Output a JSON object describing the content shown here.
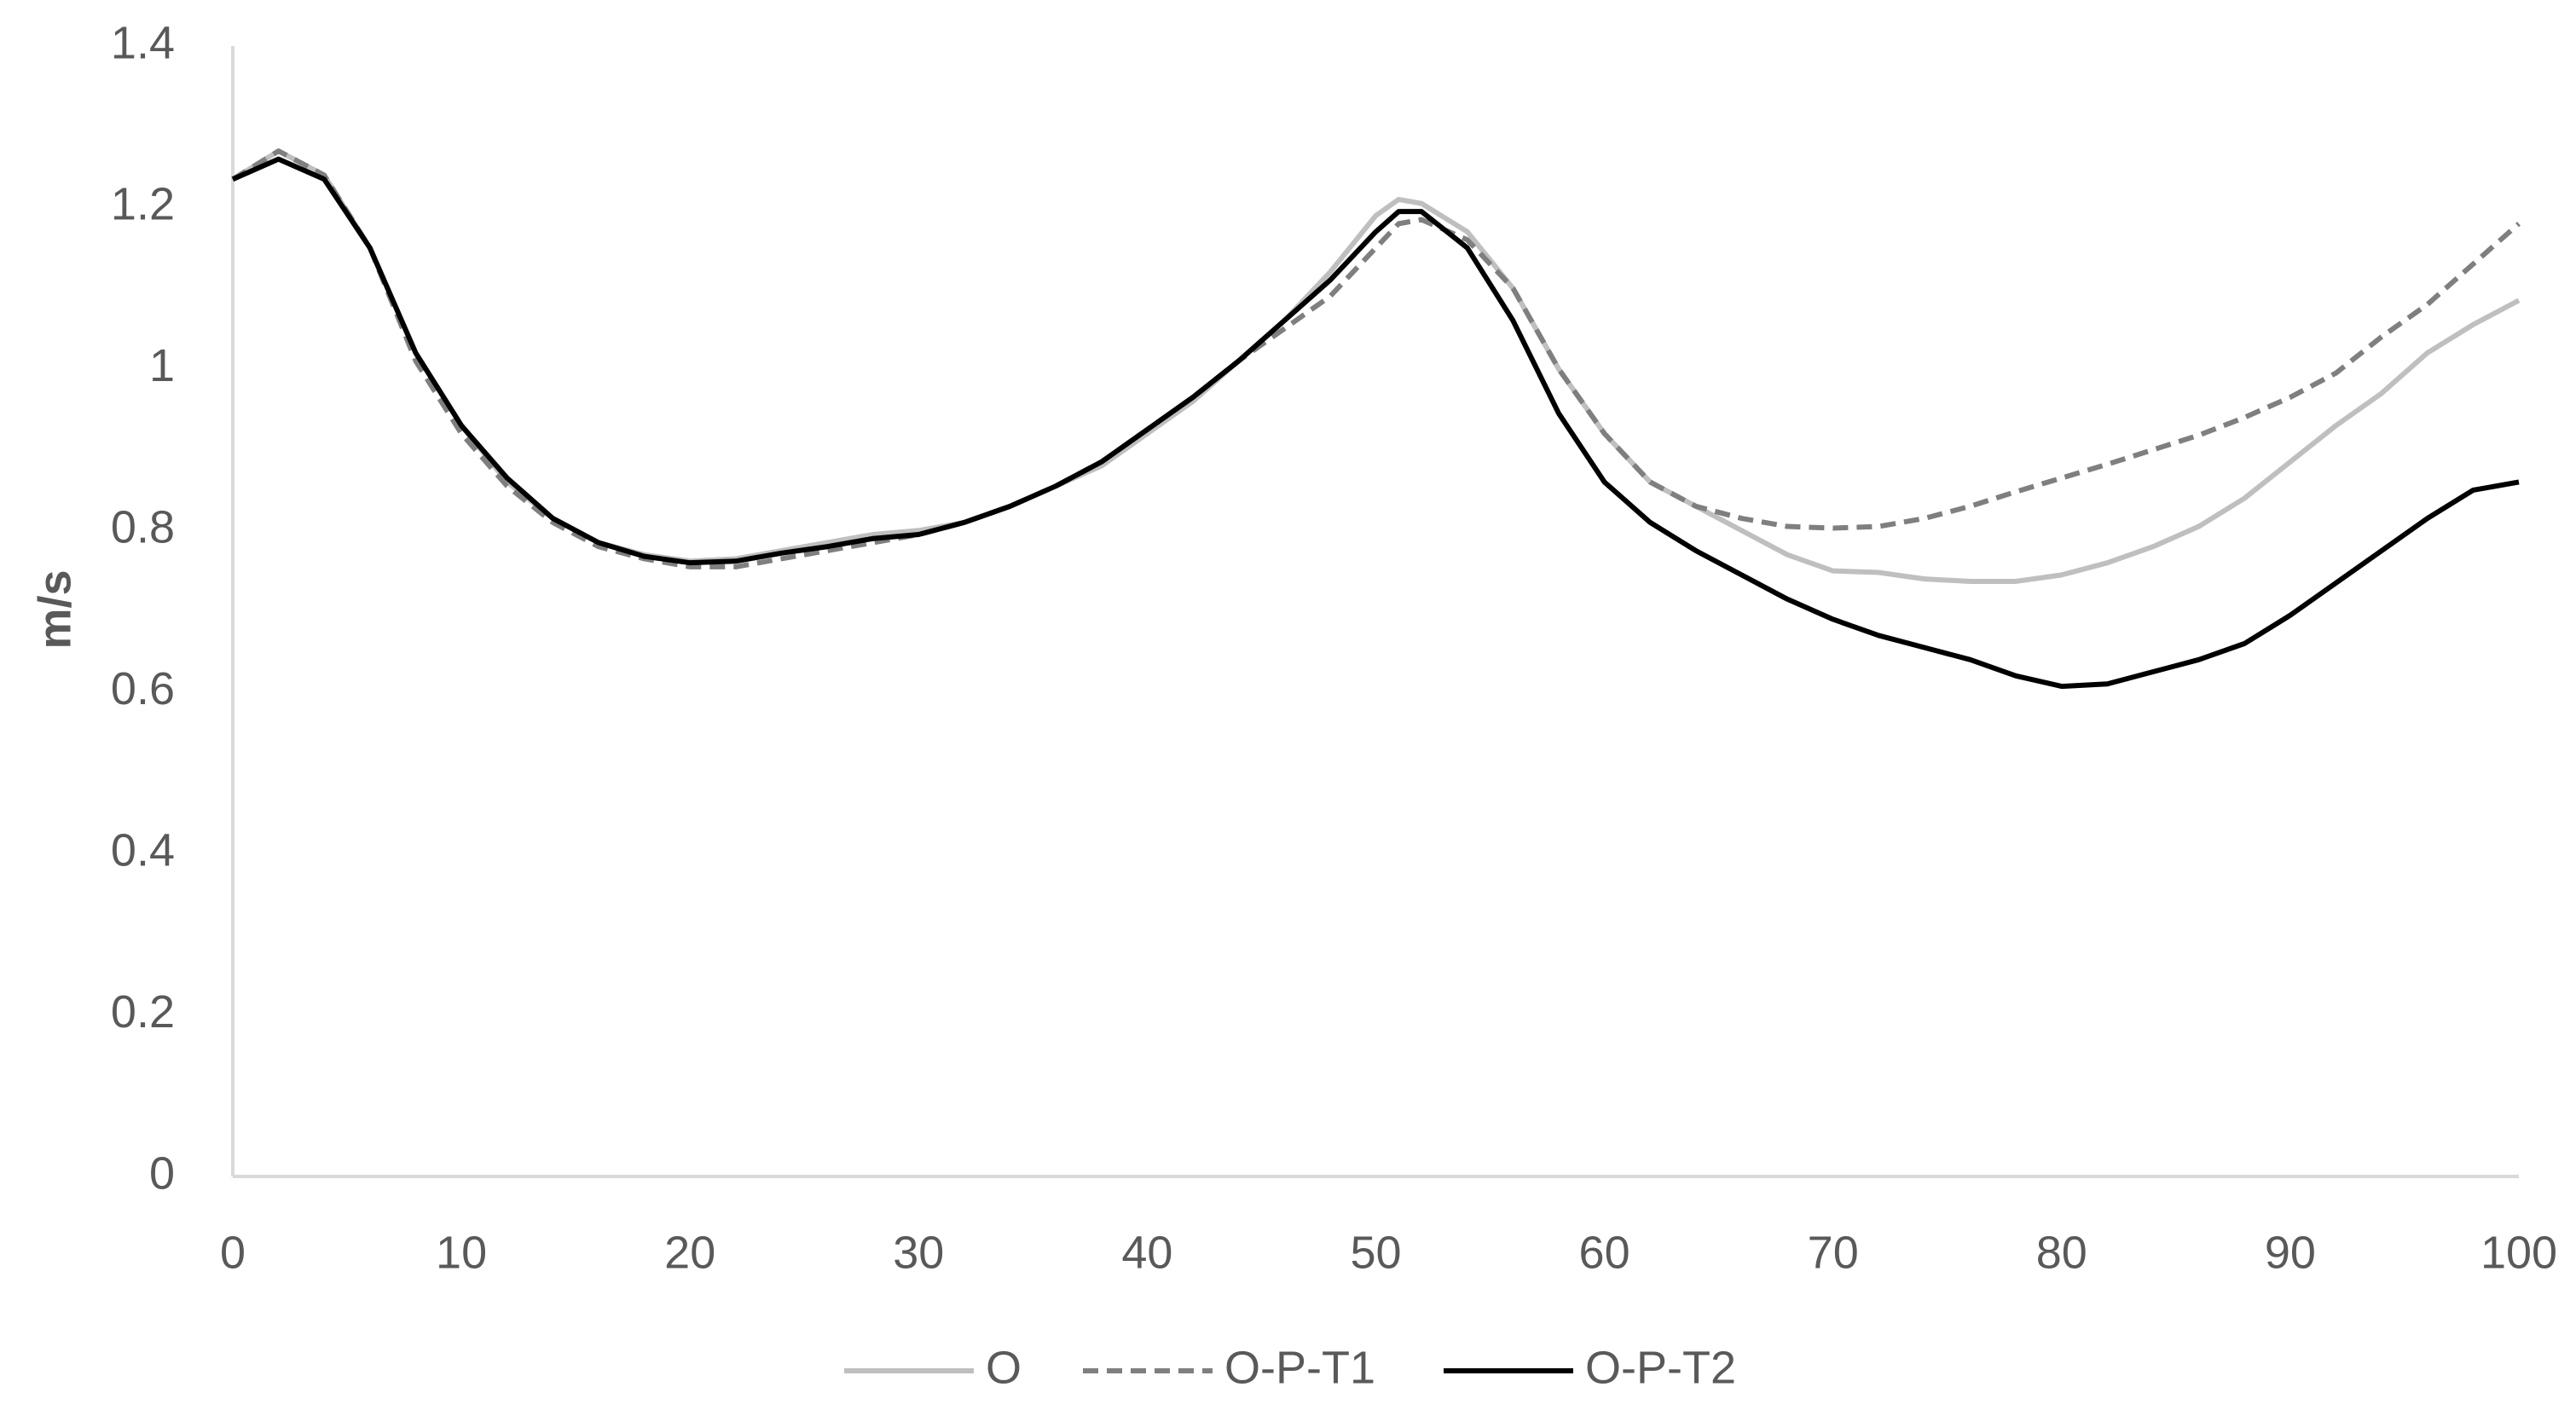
{
  "chart_data": {
    "type": "line",
    "y_label": "m/s",
    "x": [
      0,
      2,
      4,
      6,
      8,
      10,
      12,
      14,
      16,
      18,
      20,
      22,
      24,
      26,
      28,
      30,
      32,
      34,
      36,
      38,
      40,
      42,
      44,
      46,
      48,
      50,
      51,
      52,
      54,
      56,
      58,
      60,
      62,
      64,
      66,
      68,
      70,
      72,
      74,
      76,
      78,
      80,
      82,
      84,
      86,
      88,
      90,
      92,
      94,
      96,
      98,
      100
    ],
    "xlim": [
      0,
      100
    ],
    "xticks": [
      0,
      10,
      20,
      30,
      40,
      50,
      60,
      70,
      80,
      90,
      100
    ],
    "ylim": [
      0,
      1.4
    ],
    "yticks": [
      0,
      0.2,
      0.4,
      0.6,
      0.8,
      1,
      1.2,
      1.4
    ],
    "grid": false,
    "legend": "bottom",
    "series": [
      {
        "name": "O",
        "color": "#bfbfbf",
        "dash": "solid",
        "values": [
          1.235,
          1.27,
          1.24,
          1.15,
          1.02,
          0.93,
          0.86,
          0.815,
          0.785,
          0.77,
          0.762,
          0.765,
          0.775,
          0.785,
          0.795,
          0.8,
          0.81,
          0.83,
          0.855,
          0.88,
          0.92,
          0.96,
          1.01,
          1.06,
          1.12,
          1.19,
          1.21,
          1.205,
          1.17,
          1.1,
          1.0,
          0.92,
          0.86,
          0.83,
          0.8,
          0.77,
          0.75,
          0.748,
          0.74,
          0.737,
          0.737,
          0.745,
          0.76,
          0.78,
          0.805,
          0.84,
          0.885,
          0.93,
          0.97,
          1.02,
          1.055,
          1.085
        ]
      },
      {
        "name": "O-P-T1",
        "color": "#7f7f7f",
        "dash": "dashed",
        "values": [
          1.235,
          1.27,
          1.24,
          1.15,
          1.01,
          0.92,
          0.855,
          0.81,
          0.78,
          0.765,
          0.755,
          0.755,
          0.765,
          0.775,
          0.785,
          0.795,
          0.81,
          0.83,
          0.855,
          0.885,
          0.925,
          0.965,
          1.01,
          1.05,
          1.09,
          1.15,
          1.18,
          1.185,
          1.16,
          1.1,
          1.0,
          0.92,
          0.86,
          0.83,
          0.815,
          0.805,
          0.803,
          0.805,
          0.815,
          0.83,
          0.848,
          0.865,
          0.882,
          0.9,
          0.918,
          0.94,
          0.965,
          0.995,
          1.04,
          1.08,
          1.13,
          1.18
        ]
      },
      {
        "name": "O-P-T2",
        "color": "#000000",
        "dash": "solid",
        "values": [
          1.235,
          1.26,
          1.235,
          1.15,
          1.02,
          0.93,
          0.865,
          0.815,
          0.785,
          0.768,
          0.76,
          0.762,
          0.772,
          0.78,
          0.79,
          0.795,
          0.81,
          0.83,
          0.855,
          0.885,
          0.925,
          0.965,
          1.01,
          1.06,
          1.11,
          1.17,
          1.195,
          1.195,
          1.15,
          1.06,
          0.945,
          0.86,
          0.81,
          0.775,
          0.745,
          0.715,
          0.69,
          0.67,
          0.655,
          0.64,
          0.62,
          0.607,
          0.61,
          0.625,
          0.64,
          0.66,
          0.695,
          0.735,
          0.775,
          0.815,
          0.85,
          0.86
        ]
      }
    ]
  }
}
